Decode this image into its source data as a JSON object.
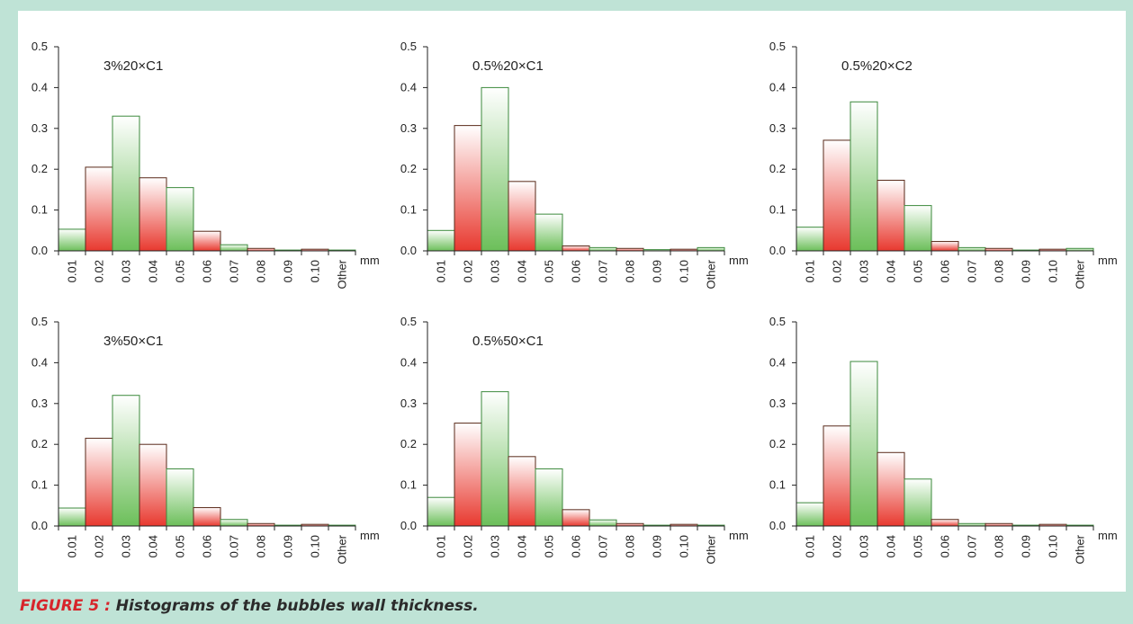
{
  "caption": {
    "figure_label": "FIGURE 5 :",
    "text": " Histograms of the bubbles wall thickness."
  },
  "colors": {
    "frame": "#bfe3d6",
    "red": "#e8392f",
    "green": "#6cbf5a",
    "border_red": "#5a2a1a",
    "border_green": "#3c8a3c"
  },
  "chart_data": [
    {
      "type": "bar",
      "title": "3%20×C1",
      "categories": [
        "0.01",
        "0.02",
        "0.03",
        "0.04",
        "0.05",
        "0.06",
        "0.07",
        "0.08",
        "0.09",
        "0.10",
        "Other"
      ],
      "values": [
        0.053,
        0.205,
        0.33,
        0.179,
        0.155,
        0.048,
        0.015,
        0.006,
        0.002,
        0.004,
        0.002
      ],
      "ylim": [
        0,
        0.5
      ],
      "yticks": [
        "0.0",
        "0.1",
        "0.2",
        "0.3",
        "0.4",
        "0.5"
      ],
      "xunit": "mm"
    },
    {
      "type": "bar",
      "title": "0.5%20×C1",
      "categories": [
        "0.01",
        "0.02",
        "0.03",
        "0.04",
        "0.05",
        "0.06",
        "0.07",
        "0.08",
        "0.09",
        "0.10",
        "Other"
      ],
      "values": [
        0.05,
        0.307,
        0.4,
        0.17,
        0.09,
        0.012,
        0.008,
        0.006,
        0.003,
        0.004,
        0.008
      ],
      "ylim": [
        0,
        0.5
      ],
      "yticks": [
        "0.0",
        "0.1",
        "0.2",
        "0.3",
        "0.4",
        "0.5"
      ],
      "xunit": "mm"
    },
    {
      "type": "bar",
      "title": "0.5%20×C2",
      "categories": [
        "0.01",
        "0.02",
        "0.03",
        "0.04",
        "0.05",
        "0.06",
        "0.07",
        "0.08",
        "0.09",
        "0.10",
        "Other"
      ],
      "values": [
        0.058,
        0.271,
        0.365,
        0.173,
        0.111,
        0.023,
        0.008,
        0.006,
        0.002,
        0.004,
        0.006
      ],
      "ylim": [
        0,
        0.5
      ],
      "yticks": [
        "0.0",
        "0.1",
        "0.2",
        "0.3",
        "0.4",
        "0.5"
      ],
      "xunit": "mm"
    },
    {
      "type": "bar",
      "title": "3%50×C1",
      "categories": [
        "0.01",
        "0.02",
        "0.03",
        "0.04",
        "0.05",
        "0.06",
        "0.07",
        "0.08",
        "0.09",
        "0.10",
        "Other"
      ],
      "values": [
        0.044,
        0.215,
        0.32,
        0.2,
        0.14,
        0.045,
        0.016,
        0.006,
        0.002,
        0.004,
        0.002
      ],
      "ylim": [
        0,
        0.5
      ],
      "yticks": [
        "0.0",
        "0.1",
        "0.2",
        "0.3",
        "0.4",
        "0.5"
      ],
      "xunit": "mm"
    },
    {
      "type": "bar",
      "title": "0.5%50×C1",
      "categories": [
        "0.01",
        "0.02",
        "0.03",
        "0.04",
        "0.05",
        "0.06",
        "0.07",
        "0.08",
        "0.09",
        "0.10",
        "Other"
      ],
      "values": [
        0.07,
        0.252,
        0.329,
        0.17,
        0.14,
        0.04,
        0.015,
        0.006,
        0.002,
        0.004,
        0.002
      ],
      "ylim": [
        0,
        0.5
      ],
      "yticks": [
        "0.0",
        "0.1",
        "0.2",
        "0.3",
        "0.4",
        "0.5"
      ],
      "xunit": "mm"
    },
    {
      "type": "bar",
      "title": "",
      "categories": [
        "0.01",
        "0.02",
        "0.03",
        "0.04",
        "0.05",
        "0.06",
        "0.07",
        "0.08",
        "0.09",
        "0.10",
        "Other"
      ],
      "values": [
        0.057,
        0.245,
        0.403,
        0.18,
        0.115,
        0.016,
        0.006,
        0.006,
        0.002,
        0.004,
        0.002
      ],
      "ylim": [
        0,
        0.5
      ],
      "yticks": [
        "0.0",
        "0.1",
        "0.2",
        "0.3",
        "0.4",
        "0.5"
      ],
      "xunit": "mm"
    }
  ]
}
